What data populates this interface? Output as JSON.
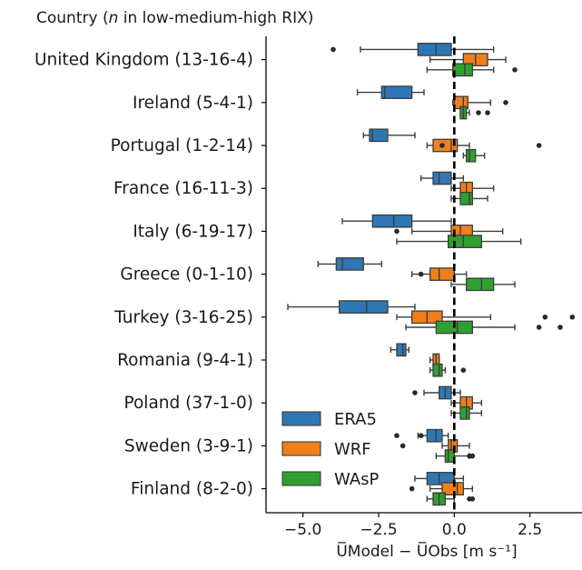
{
  "chart_data": {
    "type": "box",
    "orientation": "horizontal",
    "title_prefix": "Country (",
    "title_italic": "n",
    "title_suffix": " in low-medium-high RIX)",
    "xlabel": "U̅Model − U̅Obs [m s⁻¹]",
    "xlim": [
      -6.1,
      4.1
    ],
    "xticks": [
      -5.0,
      -2.5,
      0.0,
      2.5
    ],
    "xtick_labels": [
      "−5.0",
      "−2.5",
      "0.0",
      "2.5"
    ],
    "zero_line": true,
    "legend_position": "lower-left",
    "colors": {
      "ERA5": "#2e77b4",
      "WRF": "#f07f1a",
      "WAsP": "#2fa02f"
    },
    "series": [
      "ERA5",
      "WRF",
      "WAsP"
    ],
    "categories": [
      {
        "label": "United Kingdom (13-16-4)",
        "boxes": [
          {
            "series": "ERA5",
            "whisker_low": -3.1,
            "q1": -1.2,
            "median": -0.6,
            "q3": -0.1,
            "whisker_high": 1.3,
            "fliers": [
              -4.0
            ]
          },
          {
            "series": "WRF",
            "whisker_low": -0.8,
            "q1": 0.3,
            "median": 0.7,
            "q3": 1.1,
            "whisker_high": 1.7,
            "fliers": []
          },
          {
            "series": "WAsP",
            "whisker_low": -0.9,
            "q1": -0.05,
            "median": 0.35,
            "q3": 0.6,
            "whisker_high": 1.3,
            "fliers": [
              2.0
            ]
          }
        ]
      },
      {
        "label": "Ireland (5-4-1)",
        "boxes": [
          {
            "series": "ERA5",
            "whisker_low": -3.2,
            "q1": -2.4,
            "median": -2.3,
            "q3": -1.4,
            "whisker_high": -1.0,
            "fliers": []
          },
          {
            "series": "WRF",
            "whisker_low": -0.05,
            "q1": 0.0,
            "median": 0.3,
            "q3": 0.45,
            "whisker_high": 1.2,
            "fliers": [
              1.7
            ]
          },
          {
            "series": "WAsP",
            "whisker_low": 0.2,
            "q1": 0.2,
            "median": 0.3,
            "q3": 0.4,
            "whisker_high": 0.5,
            "fliers": [
              0.8,
              1.1
            ]
          }
        ]
      },
      {
        "label": "Portugal (1-2-14)",
        "boxes": [
          {
            "series": "ERA5",
            "whisker_low": -3.0,
            "q1": -2.8,
            "median": -2.7,
            "q3": -2.2,
            "whisker_high": -1.3,
            "fliers": []
          },
          {
            "series": "WRF",
            "whisker_low": -0.9,
            "q1": -0.7,
            "median": -0.1,
            "q3": 0.1,
            "whisker_high": 0.5,
            "fliers": [
              -0.4,
              2.8
            ]
          },
          {
            "series": "WAsP",
            "whisker_low": 0.3,
            "q1": 0.4,
            "median": 0.5,
            "q3": 0.7,
            "whisker_high": 1.0,
            "fliers": []
          }
        ]
      },
      {
        "label": "France (16-11-3)",
        "boxes": [
          {
            "series": "ERA5",
            "whisker_low": -1.1,
            "q1": -0.7,
            "median": -0.5,
            "q3": -0.1,
            "whisker_high": 0.3,
            "fliers": []
          },
          {
            "series": "WRF",
            "whisker_low": -0.1,
            "q1": 0.2,
            "median": 0.4,
            "q3": 0.6,
            "whisker_high": 1.3,
            "fliers": []
          },
          {
            "series": "WAsP",
            "whisker_low": -0.1,
            "q1": 0.2,
            "median": 0.5,
            "q3": 0.6,
            "whisker_high": 1.1,
            "fliers": []
          }
        ]
      },
      {
        "label": "Italy (6-19-17)",
        "boxes": [
          {
            "series": "ERA5",
            "whisker_low": -3.7,
            "q1": -2.7,
            "median": -2.0,
            "q3": -1.4,
            "whisker_high": -0.1,
            "fliers": []
          },
          {
            "series": "WRF",
            "whisker_low": -1.4,
            "q1": -0.1,
            "median": 0.2,
            "q3": 0.6,
            "whisker_high": 1.6,
            "fliers": [
              -1.9
            ]
          },
          {
            "series": "WAsP",
            "whisker_low": -1.9,
            "q1": -0.2,
            "median": 0.3,
            "q3": 0.9,
            "whisker_high": 2.2,
            "fliers": []
          }
        ]
      },
      {
        "label": "Greece (0-1-10)",
        "boxes": [
          {
            "series": "ERA5",
            "whisker_low": -4.5,
            "q1": -3.9,
            "median": -3.7,
            "q3": -3.0,
            "whisker_high": -2.4,
            "fliers": []
          },
          {
            "series": "WRF",
            "whisker_low": -1.4,
            "q1": -0.8,
            "median": -0.5,
            "q3": 0.0,
            "whisker_high": 0.4,
            "fliers": [
              -1.1
            ]
          },
          {
            "series": "WAsP",
            "whisker_low": -0.1,
            "q1": 0.4,
            "median": 0.9,
            "q3": 1.3,
            "whisker_high": 2.0,
            "fliers": []
          }
        ]
      },
      {
        "label": "Turkey (3-16-25)",
        "boxes": [
          {
            "series": "ERA5",
            "whisker_low": -5.5,
            "q1": -3.8,
            "median": -2.9,
            "q3": -2.2,
            "whisker_high": -1.3,
            "fliers": []
          },
          {
            "series": "WRF",
            "whisker_low": -1.9,
            "q1": -1.4,
            "median": -0.9,
            "q3": -0.4,
            "whisker_high": 1.2,
            "fliers": [
              3.0,
              3.9
            ]
          },
          {
            "series": "WAsP",
            "whisker_low": -1.6,
            "q1": -0.6,
            "median": 0.1,
            "q3": 0.6,
            "whisker_high": 2.0,
            "fliers": [
              2.8,
              3.5
            ]
          }
        ]
      },
      {
        "label": "Romania (9-4-1)",
        "boxes": [
          {
            "series": "ERA5",
            "whisker_low": -2.1,
            "q1": -1.9,
            "median": -1.7,
            "q3": -1.6,
            "whisker_high": -1.5,
            "fliers": []
          },
          {
            "series": "WRF",
            "whisker_low": -0.8,
            "q1": -0.7,
            "median": -0.6,
            "q3": -0.5,
            "whisker_high": -0.5,
            "fliers": []
          },
          {
            "series": "WAsP",
            "whisker_low": -0.8,
            "q1": -0.7,
            "median": -0.5,
            "q3": -0.4,
            "whisker_high": -0.3,
            "fliers": [
              0.3
            ]
          }
        ]
      },
      {
        "label": "Poland (37-1-0)",
        "boxes": [
          {
            "series": "ERA5",
            "whisker_low": -1.0,
            "q1": -0.5,
            "median": -0.3,
            "q3": -0.1,
            "whisker_high": 0.2,
            "fliers": [
              -1.3
            ]
          },
          {
            "series": "WRF",
            "whisker_low": -0.1,
            "q1": 0.2,
            "median": 0.4,
            "q3": 0.6,
            "whisker_high": 0.9,
            "fliers": []
          },
          {
            "series": "WAsP",
            "whisker_low": -0.1,
            "q1": 0.2,
            "median": 0.4,
            "q3": 0.5,
            "whisker_high": 0.9,
            "fliers": []
          }
        ]
      },
      {
        "label": "Sweden (3-9-1)",
        "boxes": [
          {
            "series": "ERA5",
            "whisker_low": -1.2,
            "q1": -0.9,
            "median": -0.6,
            "q3": -0.4,
            "whisker_high": -0.2,
            "fliers": [
              -1.9,
              -1.1
            ]
          },
          {
            "series": "WRF",
            "whisker_low": -0.4,
            "q1": -0.2,
            "median": -0.1,
            "q3": 0.1,
            "whisker_high": 0.5,
            "fliers": [
              -1.7
            ]
          },
          {
            "series": "WAsP",
            "whisker_low": -0.6,
            "q1": -0.3,
            "median": -0.2,
            "q3": 0.0,
            "whisker_high": 0.5,
            "fliers": [
              0.5,
              0.6
            ]
          }
        ]
      },
      {
        "label": "Finland (8-2-0)",
        "boxes": [
          {
            "series": "ERA5",
            "whisker_low": -1.3,
            "q1": -0.9,
            "median": -0.5,
            "q3": 0.0,
            "whisker_high": 0.3,
            "fliers": []
          },
          {
            "series": "WRF",
            "whisker_low": -0.8,
            "q1": -0.4,
            "median": 0.1,
            "q3": 0.3,
            "whisker_high": 0.6,
            "fliers": [
              -1.4
            ]
          },
          {
            "series": "WAsP",
            "whisker_low": -0.9,
            "q1": -0.7,
            "median": -0.5,
            "q3": -0.3,
            "whisker_high": 0.0,
            "fliers": [
              0.5,
              0.6
            ]
          }
        ]
      }
    ]
  }
}
